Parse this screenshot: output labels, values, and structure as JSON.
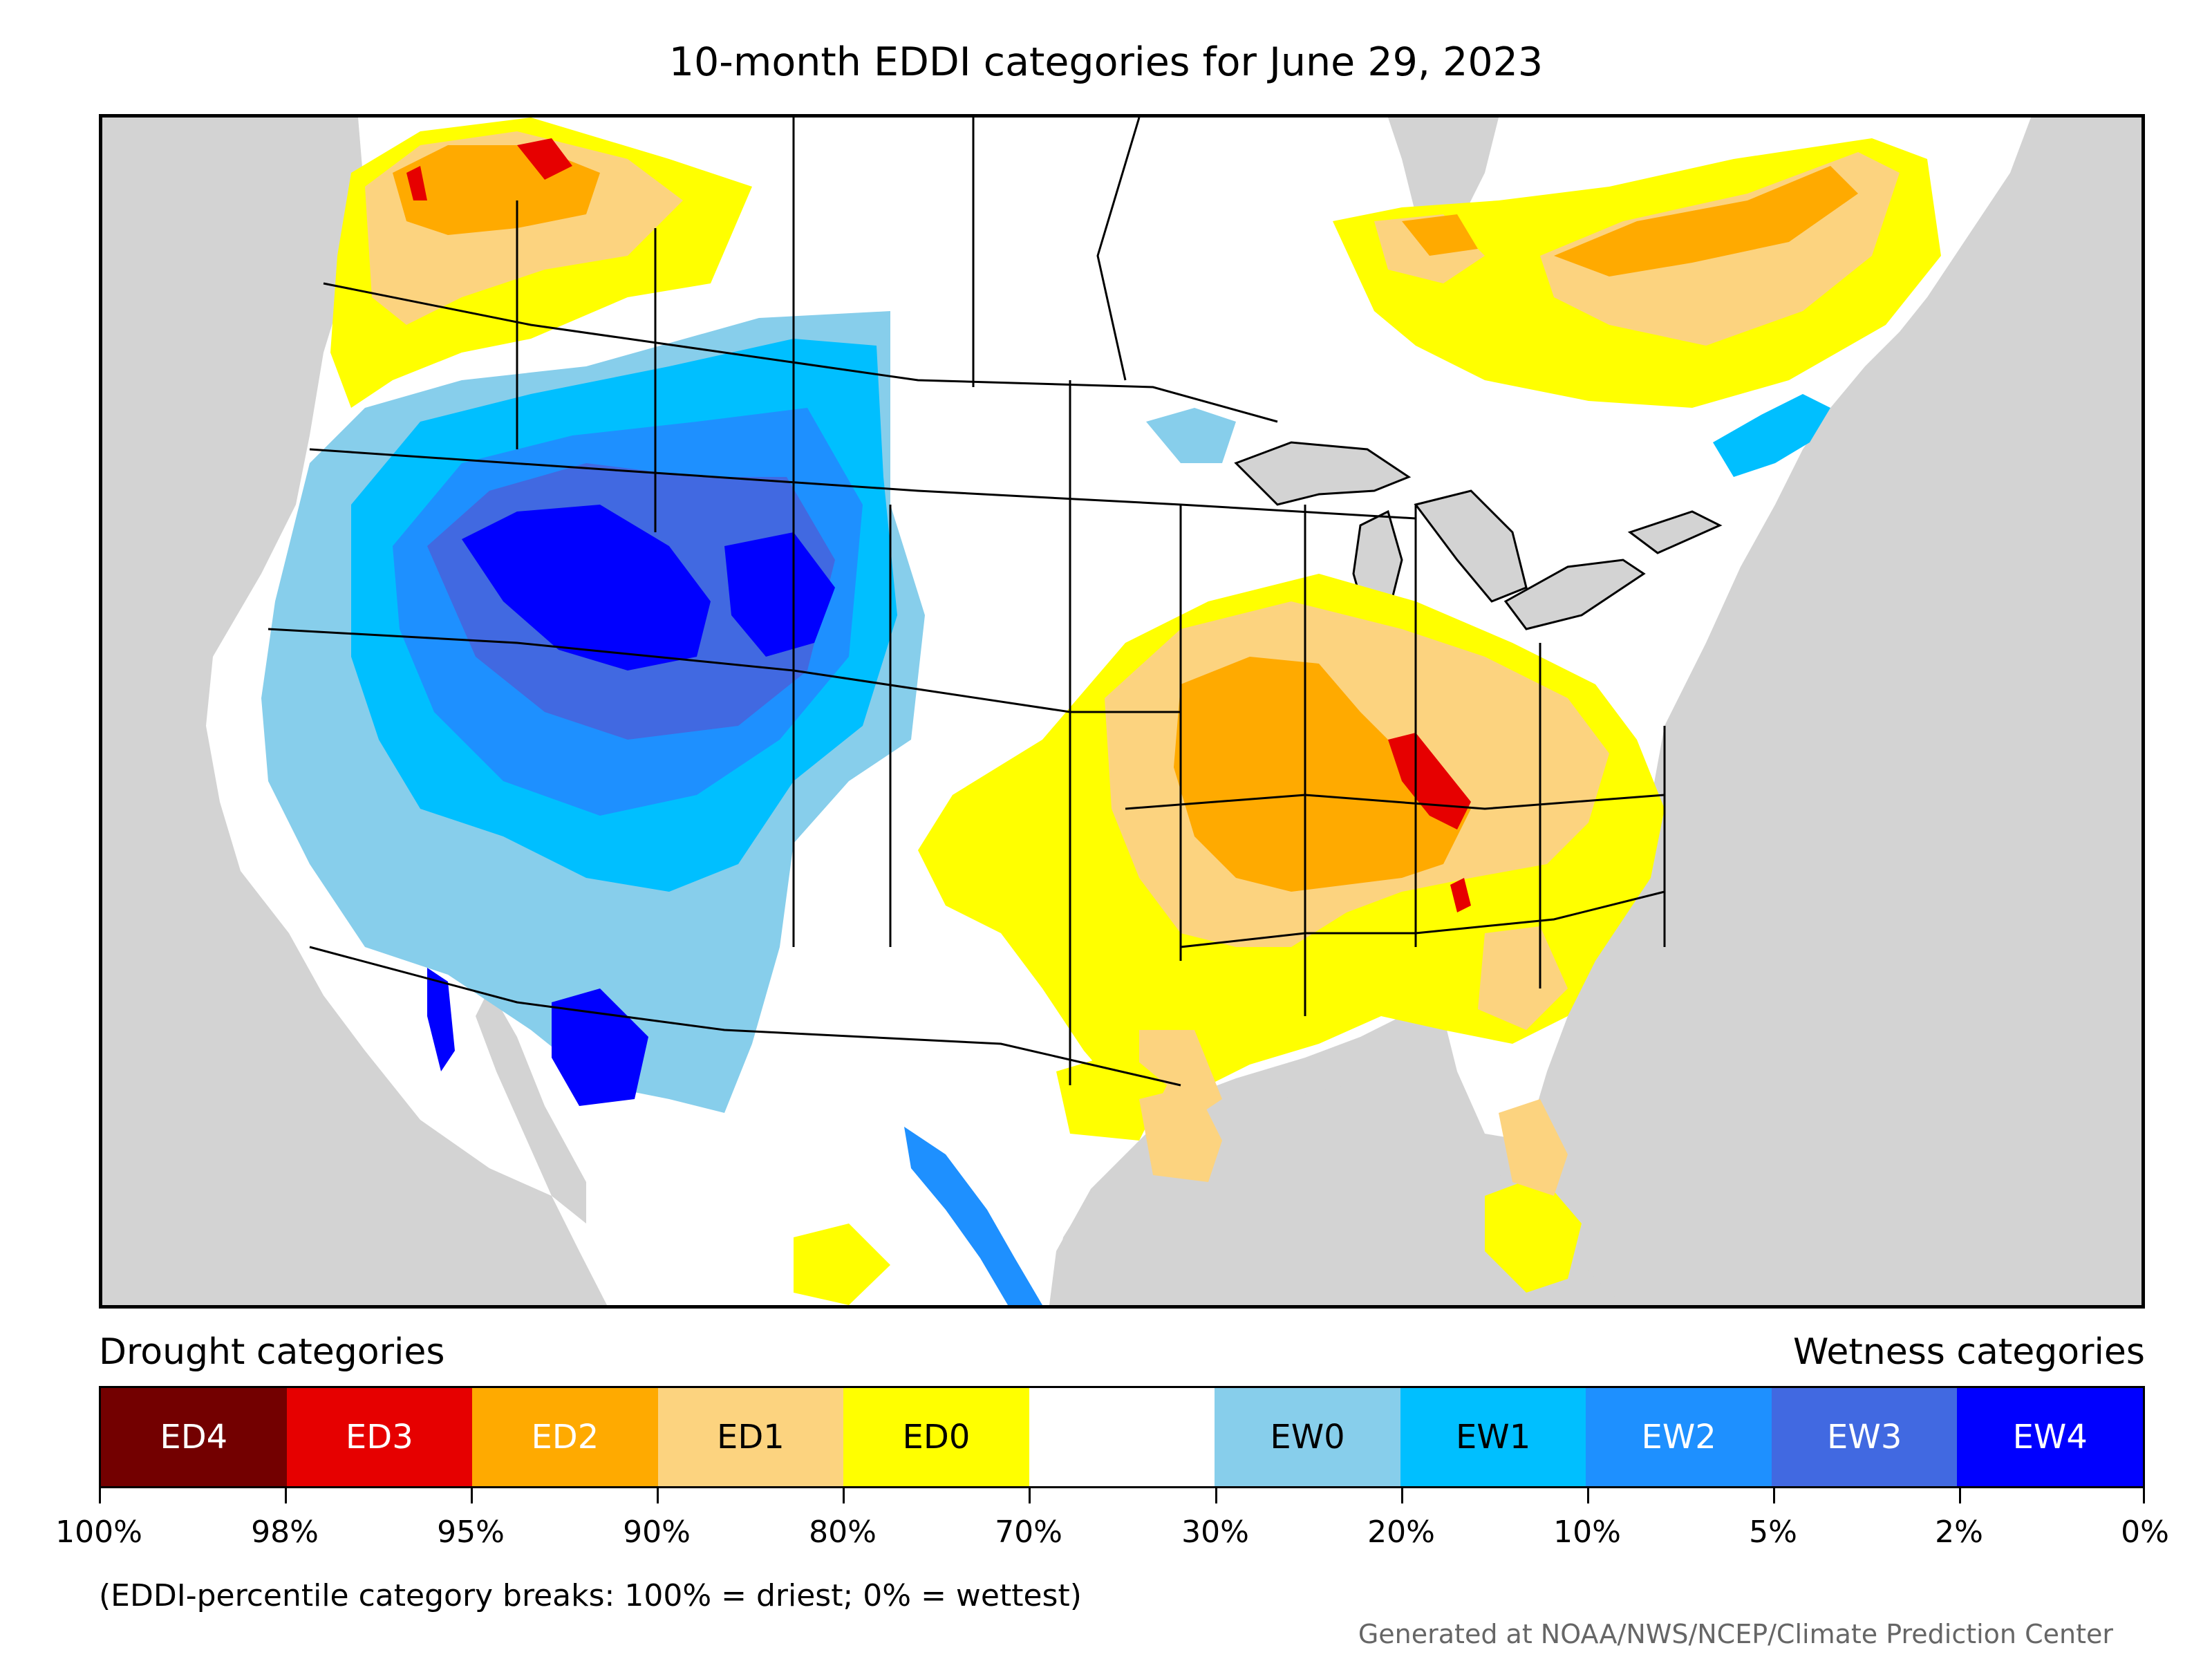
{
  "title": "10-month EDDI categories for June 29, 2023",
  "legend": {
    "drought_heading": "Drought categories",
    "wetness_heading": "Wetness categories",
    "categories": [
      {
        "label": "ED4",
        "color": "#730000",
        "text_color": "#ffffff"
      },
      {
        "label": "ED3",
        "color": "#e60000",
        "text_color": "#ffffff"
      },
      {
        "label": "ED2",
        "color": "#ffaa00",
        "text_color": "#ffffff"
      },
      {
        "label": "ED1",
        "color": "#fcd37f",
        "text_color": "#000000"
      },
      {
        "label": "ED0",
        "color": "#ffff00",
        "text_color": "#000000"
      },
      {
        "label": "",
        "color": "#ffffff",
        "text_color": "#000000"
      },
      {
        "label": "EW0",
        "color": "#87ceeb",
        "text_color": "#000000"
      },
      {
        "label": "EW1",
        "color": "#00bfff",
        "text_color": "#000000"
      },
      {
        "label": "EW2",
        "color": "#1e90ff",
        "text_color": "#ffffff"
      },
      {
        "label": "EW3",
        "color": "#4169e1",
        "text_color": "#ffffff"
      },
      {
        "label": "EW4",
        "color": "#0000ff",
        "text_color": "#ffffff"
      }
    ],
    "breaks": [
      "100%",
      "98%",
      "95%",
      "90%",
      "80%",
      "70%",
      "30%",
      "20%",
      "10%",
      "5%",
      "2%",
      "0%"
    ]
  },
  "note": "(EDDI-percentile category breaks: 100% = driest; 0% = wettest)",
  "credit": "Generated at NOAA/NWS/NCEP/Climate Prediction Center",
  "map_colors": {
    "ocean": "#d3d3d3",
    "land": "#ffffff",
    "border": "#000000"
  }
}
